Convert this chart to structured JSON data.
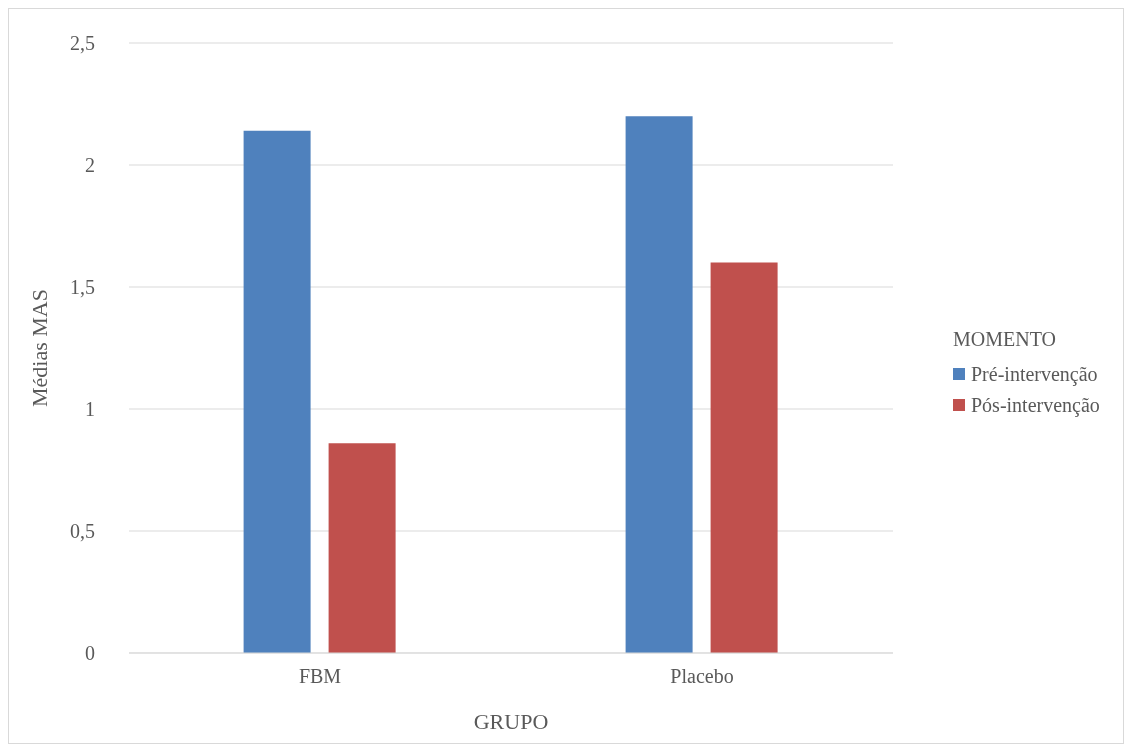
{
  "chart_data": {
    "type": "bar",
    "xlabel": "GRUPO",
    "ylabel": "Médias MAS",
    "legend_title": "MOMENTO",
    "categories": [
      "FBM",
      "Placebo"
    ],
    "series": [
      {
        "name": "Pré-intervenção",
        "color": "#4f81bd",
        "values": [
          2.14,
          2.2
        ]
      },
      {
        "name": "Pós-intervenção",
        "color": "#c0504d",
        "values": [
          0.86,
          1.6
        ]
      }
    ],
    "ylim": [
      0,
      2.5
    ],
    "yticks": [
      {
        "value": 0,
        "label": "0"
      },
      {
        "value": 0.5,
        "label": "0,5"
      },
      {
        "value": 1,
        "label": "1"
      },
      {
        "value": 1.5,
        "label": "1,5"
      },
      {
        "value": 2,
        "label": "2"
      },
      {
        "value": 2.5,
        "label": "2,5"
      }
    ],
    "grid": "y",
    "legend": "right"
  }
}
